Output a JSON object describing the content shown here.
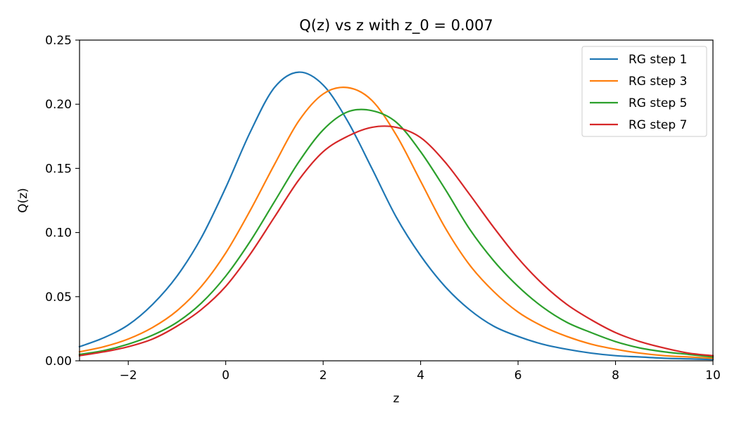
{
  "chart_data": {
    "type": "line",
    "title": "Q(z) vs z with z_0 = 0.007",
    "xlabel": "z",
    "ylabel": "Q(z)",
    "xlim": [
      -3,
      10
    ],
    "ylim": [
      0,
      0.25
    ],
    "x_ticks": [
      -2,
      0,
      2,
      4,
      6,
      8,
      10
    ],
    "x_tick_labels": [
      "−2",
      "0",
      "2",
      "4",
      "6",
      "8",
      "10"
    ],
    "y_ticks": [
      0,
      0.05,
      0.1,
      0.15,
      0.2,
      0.25
    ],
    "y_tick_labels": [
      "0.00",
      "0.05",
      "0.10",
      "0.15",
      "0.20",
      "0.25"
    ],
    "grid": false,
    "legend_position": "top-right",
    "series": [
      {
        "name": "RG step 1",
        "color": "#1f77b4",
        "x": [
          -3,
          -2.5,
          -2,
          -1.5,
          -1,
          -0.5,
          0,
          0.5,
          1,
          1.5,
          2,
          2.5,
          3,
          3.5,
          4,
          4.5,
          5,
          5.5,
          6,
          6.5,
          7,
          7.5,
          8,
          8.5,
          9,
          9.5,
          10
        ],
        "y": [
          0.011,
          0.018,
          0.028,
          0.044,
          0.066,
          0.096,
          0.135,
          0.178,
          0.213,
          0.225,
          0.215,
          0.187,
          0.15,
          0.112,
          0.082,
          0.058,
          0.04,
          0.027,
          0.019,
          0.013,
          0.009,
          0.006,
          0.004,
          0.003,
          0.002,
          0.0015,
          0.001
        ]
      },
      {
        "name": "RG step 3",
        "color": "#ff7f0e",
        "x": [
          -3,
          -2.5,
          -2,
          -1.5,
          -1,
          -0.5,
          0,
          0.5,
          1,
          1.5,
          2,
          2.5,
          3,
          3.5,
          4,
          4.5,
          5,
          5.5,
          6,
          6.5,
          7,
          7.5,
          8,
          8.5,
          9,
          9.5,
          10
        ],
        "y": [
          0.007,
          0.011,
          0.017,
          0.026,
          0.039,
          0.058,
          0.084,
          0.117,
          0.153,
          0.187,
          0.208,
          0.213,
          0.203,
          0.176,
          0.14,
          0.104,
          0.075,
          0.054,
          0.038,
          0.027,
          0.019,
          0.013,
          0.009,
          0.006,
          0.004,
          0.003,
          0.002
        ]
      },
      {
        "name": "RG step 5",
        "color": "#2ca02c",
        "x": [
          -3,
          -2.5,
          -2,
          -1.5,
          -1,
          -0.5,
          0,
          0.5,
          1,
          1.5,
          2,
          2.5,
          3,
          3.5,
          4,
          4.5,
          5,
          5.5,
          6,
          6.5,
          7,
          7.5,
          8,
          8.5,
          9,
          9.5,
          10
        ],
        "y": [
          0.005,
          0.008,
          0.013,
          0.02,
          0.03,
          0.045,
          0.066,
          0.093,
          0.124,
          0.155,
          0.18,
          0.194,
          0.195,
          0.186,
          0.163,
          0.134,
          0.103,
          0.078,
          0.058,
          0.042,
          0.03,
          0.022,
          0.015,
          0.01,
          0.007,
          0.005,
          0.003
        ]
      },
      {
        "name": "RG step 7",
        "color": "#d62728",
        "x": [
          -3,
          -2.5,
          -2,
          -1.5,
          -1,
          -0.5,
          0,
          0.5,
          1,
          1.5,
          2,
          2.5,
          3,
          3.5,
          4,
          4.5,
          5,
          5.5,
          6,
          6.5,
          7,
          7.5,
          8,
          8.5,
          9,
          9.5,
          10
        ],
        "y": [
          0.004,
          0.007,
          0.011,
          0.017,
          0.027,
          0.04,
          0.058,
          0.083,
          0.112,
          0.141,
          0.163,
          0.175,
          0.182,
          0.182,
          0.174,
          0.155,
          0.13,
          0.104,
          0.08,
          0.06,
          0.044,
          0.032,
          0.022,
          0.015,
          0.01,
          0.006,
          0.004
        ]
      }
    ]
  }
}
